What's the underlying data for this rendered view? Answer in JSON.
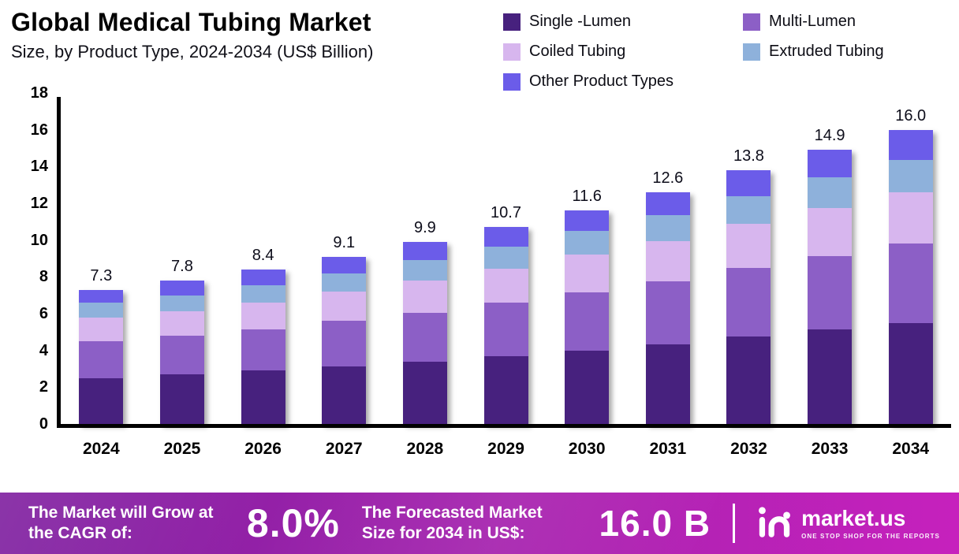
{
  "header": {
    "title": "Global Medical Tubing Market",
    "subtitle": "Size, by Product Type, 2024-2034 (US$ Billion)"
  },
  "chart_data": {
    "type": "bar",
    "stacked": true,
    "title": "Global Medical Tubing Market",
    "subtitle": "Size, by Product Type, 2024-2034 (US$ Billion)",
    "xlabel": "",
    "ylabel": "",
    "ylim": [
      0,
      18
    ],
    "ytick_step": 2,
    "grid": false,
    "legend_position": "top-right",
    "categories": [
      "2024",
      "2025",
      "2026",
      "2027",
      "2028",
      "2029",
      "2030",
      "2031",
      "2032",
      "2033",
      "2034"
    ],
    "totals": [
      7.3,
      7.8,
      8.4,
      9.1,
      9.9,
      10.7,
      11.6,
      12.6,
      13.8,
      14.9,
      16.0
    ],
    "series": [
      {
        "name": "Single -Lumen",
        "color": "#47217E",
        "values": [
          2.5,
          2.7,
          2.9,
          3.15,
          3.4,
          3.7,
          4.0,
          4.35,
          4.75,
          5.15,
          5.5
        ]
      },
      {
        "name": "Multi-Lumen",
        "color": "#8C5FC6",
        "values": [
          2.0,
          2.1,
          2.25,
          2.45,
          2.65,
          2.9,
          3.15,
          3.4,
          3.75,
          4.0,
          4.3
        ]
      },
      {
        "name": "Coiled Tubing",
        "color": "#D7B6EE",
        "values": [
          1.3,
          1.35,
          1.45,
          1.6,
          1.75,
          1.85,
          2.05,
          2.2,
          2.4,
          2.6,
          2.8
        ]
      },
      {
        "name": "Extruded Tubing",
        "color": "#8EB1DB",
        "values": [
          0.8,
          0.85,
          0.95,
          1.0,
          1.1,
          1.2,
          1.3,
          1.4,
          1.5,
          1.65,
          1.75
        ]
      },
      {
        "name": "Other Product Types",
        "color": "#6B5CE9",
        "values": [
          0.7,
          0.8,
          0.85,
          0.9,
          1.0,
          1.05,
          1.1,
          1.25,
          1.4,
          1.5,
          1.65
        ]
      }
    ]
  },
  "colors": {
    "banner_gradient_left": "#7E1E9F",
    "banner_gradient_mid": "#A822AF",
    "banner_gradient_right": "#C621BD"
  },
  "banner": {
    "cagr_label": "The Market will Grow at the CAGR of:",
    "cagr_value": "8.0%",
    "forecast_label": "The Forecasted Market Size for 2034 in US$:",
    "forecast_value": "16.0 B",
    "logo_text": "market.us",
    "logo_tagline": "One Stop Shop for the Reports"
  }
}
